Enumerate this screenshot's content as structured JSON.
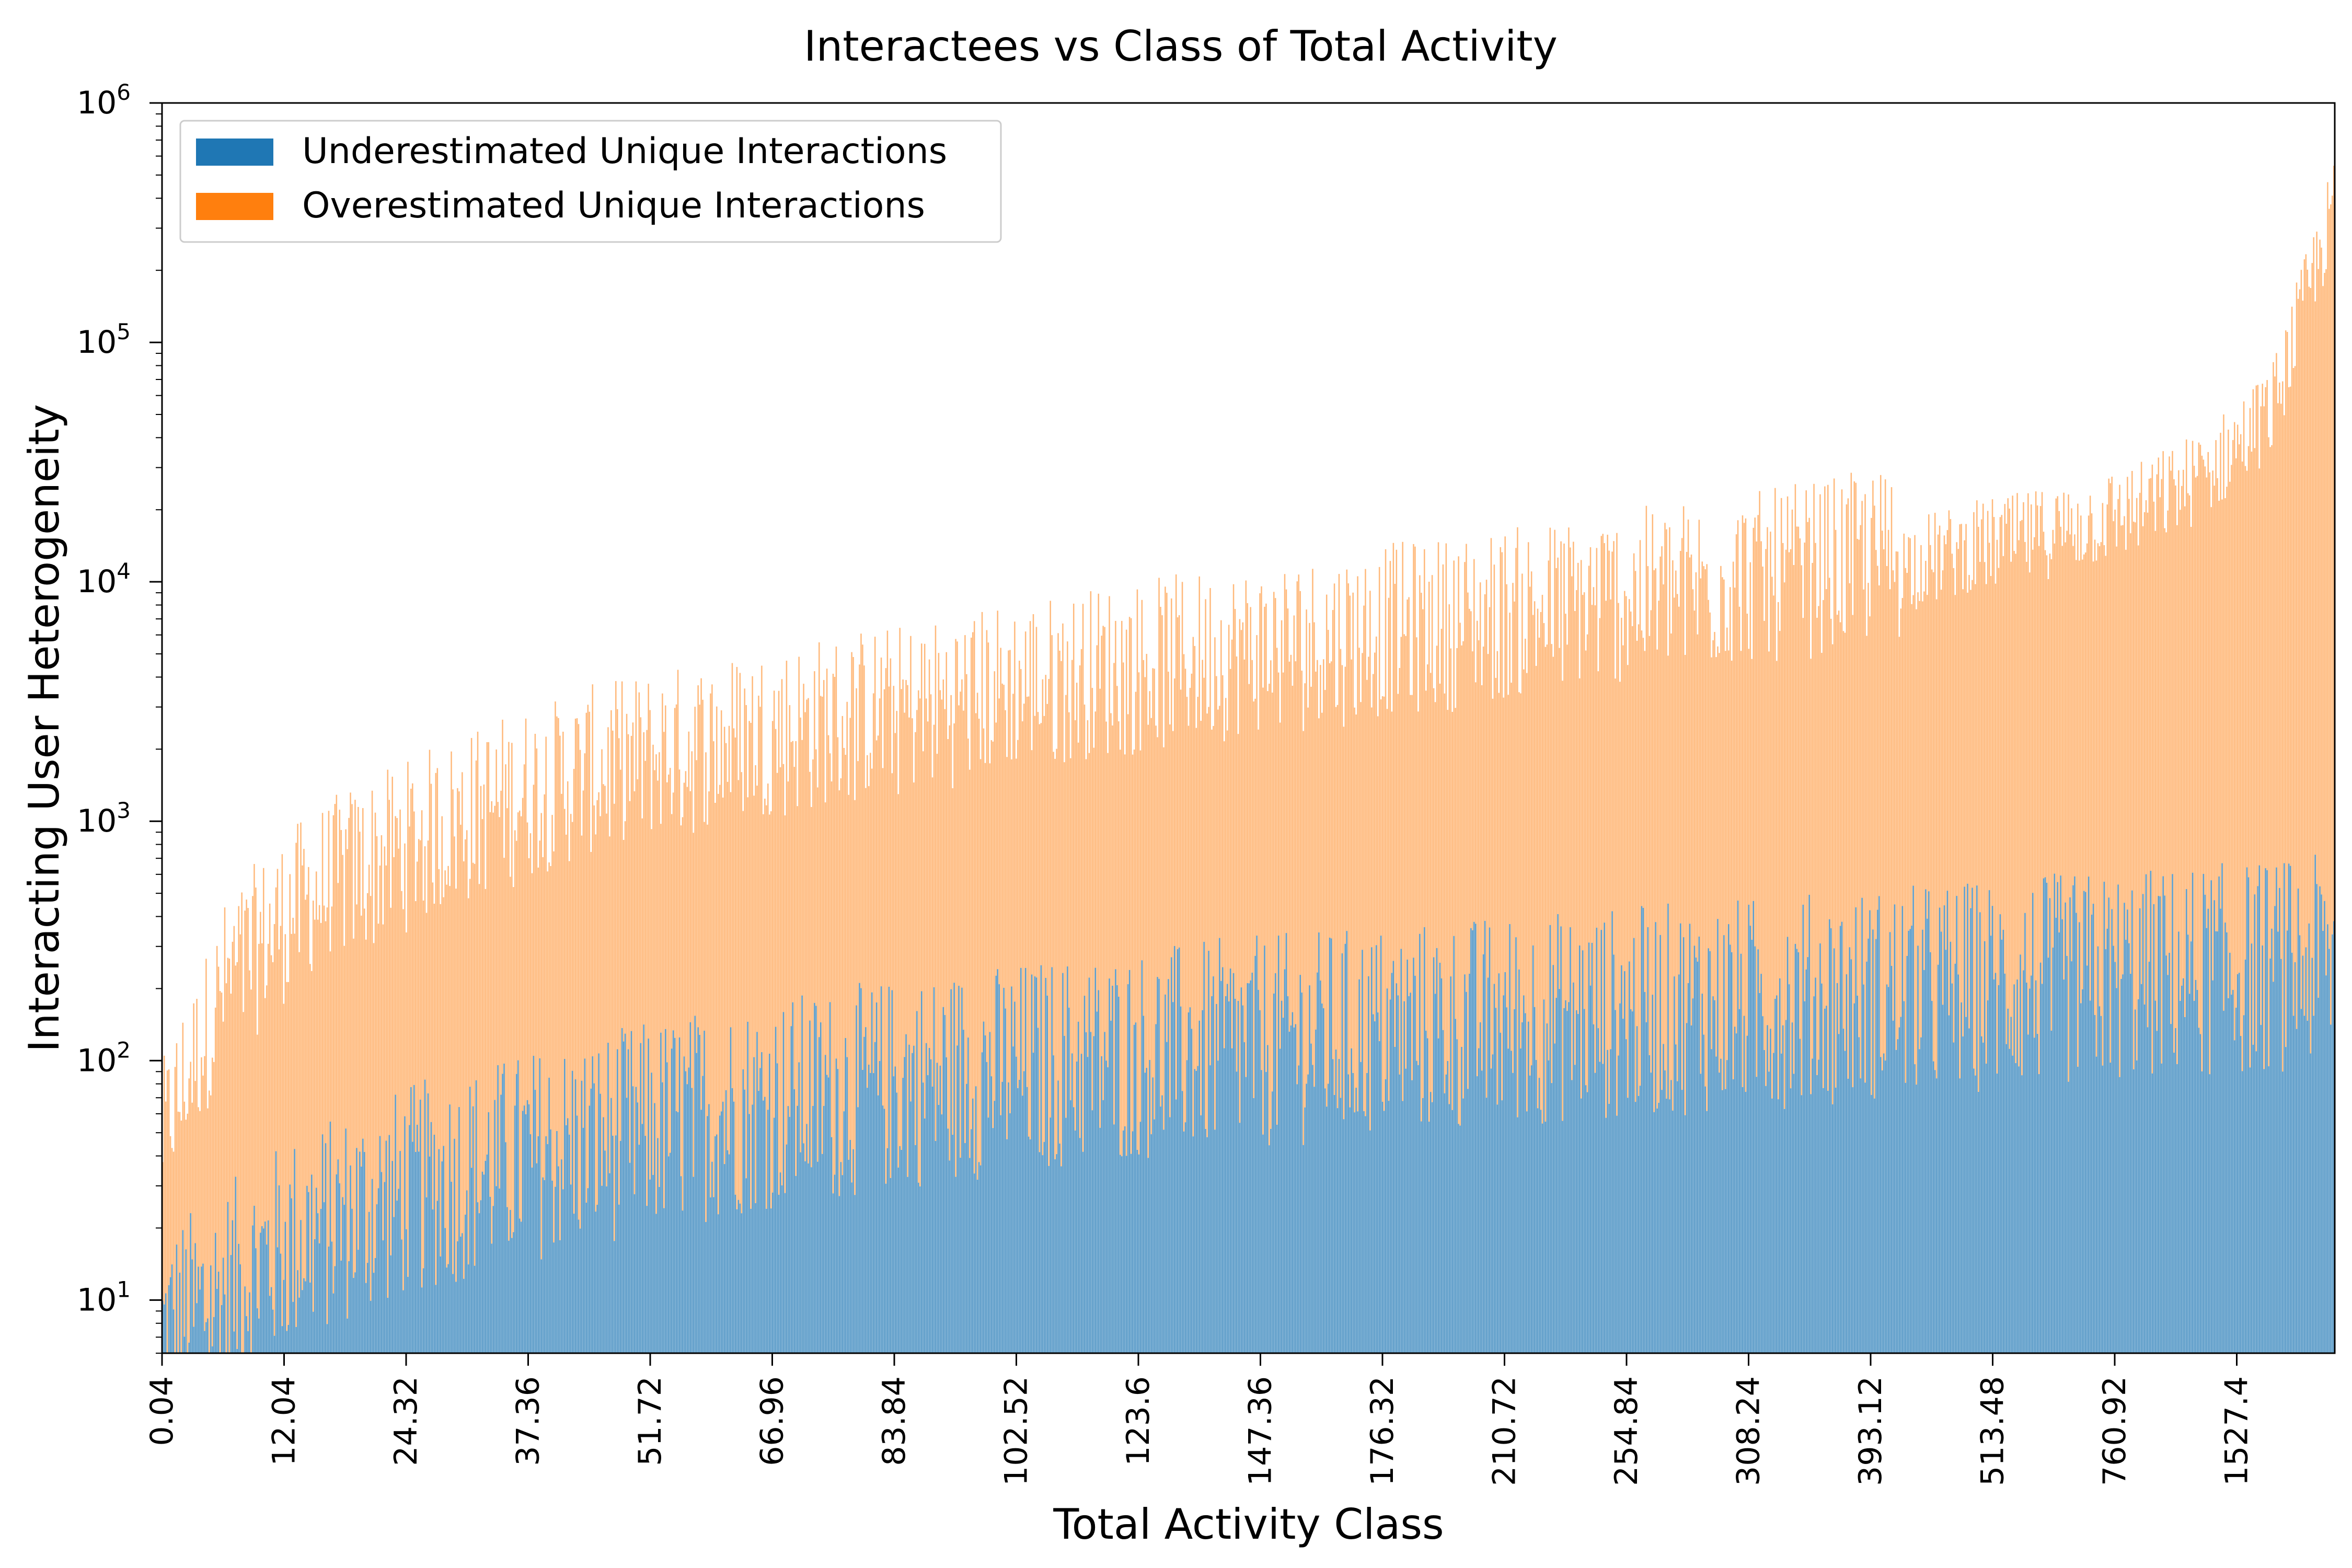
{
  "chart_data": {
    "type": "bar",
    "title": "Interactees vs Class of Total Activity",
    "xlabel": "Total Activity Class",
    "ylabel": "Interacting User Heterogeneity",
    "yscale": "log",
    "ylim": [
      6,
      1000000
    ],
    "y_ticks": [
      {
        "value": 10,
        "base": "10",
        "exp": "1"
      },
      {
        "value": 100,
        "base": "10",
        "exp": "2"
      },
      {
        "value": 1000,
        "base": "10",
        "exp": "3"
      },
      {
        "value": 10000,
        "base": "10",
        "exp": "4"
      },
      {
        "value": 100000,
        "base": "10",
        "exp": "5"
      },
      {
        "value": 1000000,
        "base": "10",
        "exp": "6"
      }
    ],
    "x_tick_labels": [
      "0.04",
      "12.04",
      "24.32",
      "37.36",
      "51.72",
      "66.96",
      "83.84",
      "102.52",
      "123.6",
      "147.36",
      "176.32",
      "210.72",
      "254.84",
      "308.24",
      "393.12",
      "513.48",
      "760.92",
      "1527.4"
    ],
    "legend": {
      "position": "top-left",
      "entries": [
        "Underestimated Unique Interactions",
        "Overestimated Unique Interactions"
      ]
    },
    "grid": false,
    "colors": {
      "underestimated": "#1f77b4",
      "overestimated": "#ff7f0e"
    },
    "stacked": true,
    "series": [
      {
        "name": "Underestimated Unique Interactions",
        "values": [
          8,
          12,
          19,
          25,
          32,
          38,
          45,
          52,
          60,
          68,
          75,
          82,
          90,
          98,
          105,
          112,
          120,
          128,
          135,
          142,
          150,
          158,
          165,
          172,
          180,
          188,
          195,
          205,
          215,
          225,
          235,
          245,
          255,
          265,
          275,
          290
        ]
      },
      {
        "name": "Overestimated Unique Interactions",
        "values": [
          30,
          150,
          300,
          450,
          600,
          800,
          1000,
          1200,
          1400,
          1600,
          1800,
          2000,
          2200,
          2500,
          2800,
          3100,
          3400,
          3700,
          4000,
          4400,
          4800,
          5200,
          5700,
          6200,
          6800,
          7400,
          8000,
          9000,
          10000,
          11500,
          13000,
          15000,
          18000,
          25000,
          45000,
          320000
        ]
      }
    ]
  }
}
